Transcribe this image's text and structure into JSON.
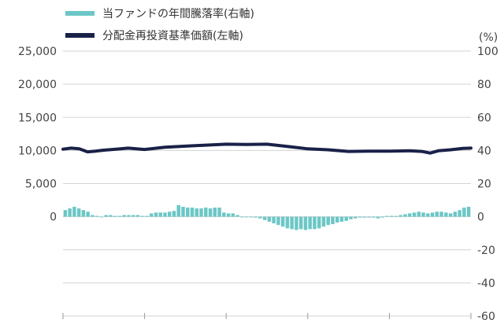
{
  "chart_data": {
    "type": "bar",
    "legend_placement": "top-left",
    "grid": true,
    "colors": {
      "bars": "#6cc7c6",
      "line": "#1a2148",
      "grid": "#d3d3d3",
      "text": "#444444"
    },
    "left_axis": {
      "ylim": [
        -15000,
        25000
      ],
      "ticks": [
        25000,
        20000,
        15000,
        10000,
        5000,
        0
      ],
      "tick_labels": [
        "25,000",
        "20,000",
        "15,000",
        "10,000",
        "5,000",
        "0"
      ]
    },
    "right_axis": {
      "unit_label": "(%)",
      "ylim": [
        -60,
        100
      ],
      "ticks": [
        100,
        80,
        60,
        40,
        20,
        0,
        -20,
        -40,
        -60
      ],
      "tick_labels": [
        "100",
        "80",
        "60",
        "40",
        "20",
        "0",
        "-20",
        "-40",
        "-60"
      ]
    },
    "series": [
      {
        "name": "当ファンドの年間騰落率(右軸)",
        "axis": "right",
        "kind": "bar",
        "values": [
          4,
          5,
          6,
          5,
          4,
          3,
          1,
          0.5,
          0,
          1,
          1,
          0.5,
          0.5,
          1,
          1,
          1,
          1,
          0.5,
          0.5,
          2,
          2.5,
          2.5,
          2.5,
          3,
          3.5,
          7,
          6,
          5.5,
          5.5,
          5,
          5,
          5.5,
          5,
          5.5,
          5.5,
          2.5,
          2,
          2,
          1,
          0,
          0,
          0,
          -0.5,
          -1,
          -2,
          -3,
          -4,
          -5,
          -6,
          -7,
          -7.5,
          -8,
          -7.5,
          -8,
          -7.5,
          -7.5,
          -7,
          -6,
          -5,
          -4.5,
          -3.5,
          -3,
          -2.5,
          -1.5,
          -1,
          -0.5,
          -0.5,
          -0.5,
          -0.5,
          -1,
          -0.5,
          0.5,
          0.5,
          0.5,
          1,
          1.5,
          2,
          2.5,
          3,
          2.5,
          2,
          2.5,
          3,
          3,
          2.5,
          2,
          3,
          4,
          5.5,
          6
        ]
      },
      {
        "name": "分配金再投資基準価額(左軸)",
        "axis": "left",
        "kind": "line",
        "x": [
          0,
          0.02,
          0.04,
          0.06,
          0.08,
          0.1,
          0.13,
          0.16,
          0.2,
          0.25,
          0.3,
          0.35,
          0.4,
          0.45,
          0.5,
          0.55,
          0.6,
          0.65,
          0.7,
          0.75,
          0.8,
          0.85,
          0.88,
          0.9,
          0.92,
          0.95,
          0.98,
          1
        ],
        "values": [
          10200,
          10350,
          10250,
          9800,
          9900,
          10050,
          10200,
          10350,
          10150,
          10500,
          10650,
          10800,
          10950,
          10900,
          10950,
          10600,
          10250,
          10100,
          9850,
          9900,
          9900,
          9950,
          9850,
          9600,
          9950,
          10100,
          10300,
          10350
        ]
      }
    ]
  }
}
